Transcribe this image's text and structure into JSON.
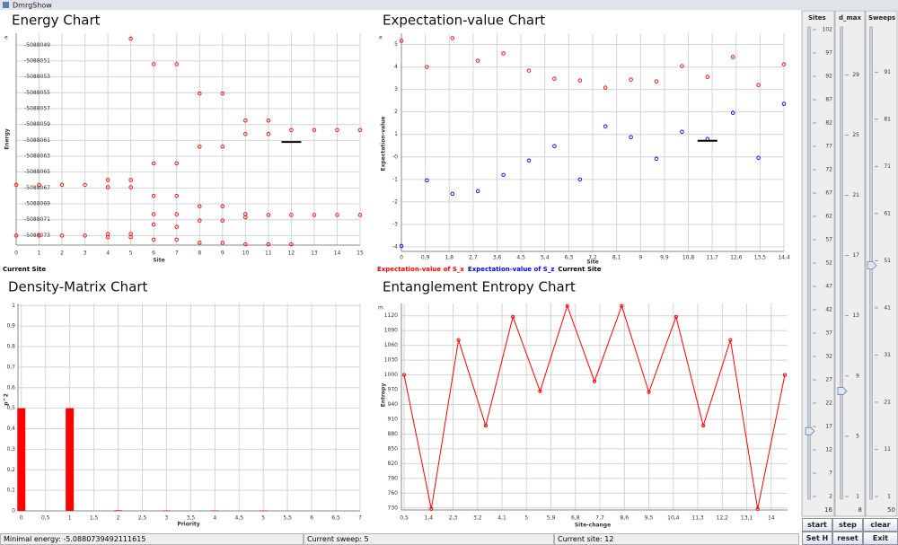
{
  "window": {
    "title": "DmrgShow"
  },
  "chart_data": [
    {
      "type": "scatter",
      "title": "Energy Chart",
      "corner_label": "e",
      "x_label": "Site",
      "y_label": "Energy",
      "xlim": [
        0,
        15
      ],
      "xticks": [
        0,
        1,
        2,
        3,
        4,
        5,
        6,
        7,
        8,
        9,
        10,
        11,
        12,
        13,
        14,
        15
      ],
      "ylim": [
        -5088074.2,
        -5088047.5
      ],
      "yticks": [
        -5088049,
        -5088051,
        -5088053,
        -5088055,
        -5088057,
        -5088059,
        -5088061,
        -5088063,
        -5088065,
        -5088067,
        -5088069,
        -5088071,
        -5088073
      ],
      "grid": true,
      "series": [
        {
          "color": "#ff0000",
          "marker": "circle",
          "x": [
            0,
            0,
            1,
            1,
            2,
            2,
            3,
            3,
            4,
            4,
            4,
            4,
            5,
            5,
            5,
            5,
            5,
            6,
            6,
            6,
            6,
            6,
            6,
            7,
            7,
            7,
            7,
            7,
            7,
            8,
            8,
            8,
            8,
            8,
            9,
            9,
            9,
            9,
            9,
            10,
            10,
            10,
            10,
            10,
            11,
            11,
            11,
            11,
            12,
            12,
            12,
            13,
            13,
            14,
            14,
            15,
            15
          ],
          "values": [
            -5088066.6,
            -5088073,
            -5088066.6,
            -5088073,
            -5088066.6,
            -5088073,
            -5088066.6,
            -5088073,
            -5088066,
            -5088066.9,
            -5088072.8,
            -5088073.2,
            -5088048.2,
            -5088066,
            -5088066.9,
            -5088072.8,
            -5088073.2,
            -5088051.4,
            -5088063.9,
            -5088068,
            -5088070.3,
            -5088071.6,
            -5088073.5,
            -5088051.4,
            -5088063.9,
            -5088068,
            -5088070.3,
            -5088071.9,
            -5088073.5,
            -5088055.1,
            -5088061.8,
            -5088069.3,
            -5088071.1,
            -5088073.9,
            -5088055.1,
            -5088061.8,
            -5088069.3,
            -5088071.1,
            -5088073.9,
            -5088058.5,
            -5088060.2,
            -5088070.3,
            -5088070.7,
            -5088074.1,
            -5088058.5,
            -5088060.2,
            -5088070.4,
            -5088074.1,
            -5088059.7,
            -5088070.4,
            -5088074.1,
            -5088059.7,
            -5088070.4,
            -5088059.7,
            -5088070.4,
            -5088059.7,
            -5088070.4
          ]
        },
        {
          "name": "Current Site",
          "color": "#000000",
          "marker": "dash",
          "x": [
            12
          ],
          "values": [
            -5088061.2
          ]
        }
      ]
    },
    {
      "type": "scatter",
      "title": "Expectation-value Chart",
      "corner_label": "e",
      "x_label": "Site",
      "y_label": "Expectation-value",
      "xlim": [
        0,
        14.4
      ],
      "xticks": [
        0,
        {
          "value": 0.9,
          "label": "0,9"
        },
        {
          "value": 1.8,
          "label": "1,8"
        },
        {
          "value": 2.7,
          "label": "2,7"
        },
        {
          "value": 3.6,
          "label": "3,6"
        },
        {
          "value": 4.5,
          "label": "4,5"
        },
        {
          "value": 5.4,
          "label": "5,4"
        },
        {
          "value": 6.3,
          "label": "6,3"
        },
        {
          "value": 7.2,
          "label": "7,2"
        },
        {
          "value": 8.1,
          "label": "8,1"
        },
        9,
        {
          "value": 9.9,
          "label": "9,9"
        },
        {
          "value": 10.8,
          "label": "10,8"
        },
        {
          "value": 11.7,
          "label": "11,7"
        },
        {
          "value": 12.6,
          "label": "12,6"
        },
        {
          "value": 13.5,
          "label": "13,5"
        },
        {
          "value": 14.4,
          "label": "14,4"
        }
      ],
      "ylim": [
        -4.2,
        5.5
      ],
      "yticks": [
        5,
        4,
        3,
        2,
        1,
        {
          "value": 0,
          "label": "-0"
        },
        -1,
        -2,
        -3,
        -4
      ],
      "grid": true,
      "series": [
        {
          "name": "Expectation-value of S_x",
          "color": "#ff0000",
          "marker": "circle",
          "x": [
            0,
            0.96,
            1.92,
            2.88,
            3.84,
            4.8,
            5.76,
            6.72,
            7.68,
            8.64,
            9.6,
            10.56,
            11.52,
            12.48,
            13.44,
            14.4
          ],
          "values": [
            5.16,
            4.0,
            5.28,
            4.28,
            4.6,
            3.84,
            3.48,
            3.4,
            3.08,
            3.44,
            3.36,
            4.04,
            3.56,
            4.44,
            3.2,
            4.12
          ]
        },
        {
          "name": "Expectation-value of S_z",
          "color": "#0000ff",
          "marker": "circle",
          "x": [
            0,
            0.96,
            1.92,
            2.88,
            3.84,
            4.8,
            5.76,
            6.72,
            7.68,
            8.64,
            9.6,
            10.56,
            11.52,
            12.48,
            13.44,
            14.4
          ],
          "values": [
            -3.96,
            -1.04,
            -1.64,
            -1.52,
            -0.8,
            -0.16,
            0.48,
            -1.0,
            1.36,
            0.88,
            -0.08,
            1.12,
            0.8,
            1.96,
            -0.04,
            2.36
          ]
        },
        {
          "name": "Current Site",
          "color": "#000000",
          "marker": "dash",
          "x": [
            11.52
          ],
          "values": [
            0.72
          ]
        }
      ]
    },
    {
      "type": "bar",
      "title": "Density-Matrix Chart",
      "x_label": "Priority",
      "y_label": "p^2",
      "color": "#ff0000",
      "x": [
        0,
        1,
        2,
        3,
        4,
        5
      ],
      "values": [
        0.5,
        0.5,
        0.003,
        0.002,
        0.002,
        0.002
      ],
      "xlim": [
        -0.07,
        7
      ],
      "xticks": [
        0,
        {
          "value": 0.5,
          "label": "0,5"
        },
        1,
        {
          "value": 1.5,
          "label": "1,5"
        },
        2,
        {
          "value": 2.5,
          "label": "2,5"
        },
        3,
        {
          "value": 3.5,
          "label": "3,5"
        },
        4,
        {
          "value": 4.5,
          "label": "4,5"
        },
        5,
        {
          "value": 5.5,
          "label": "5,5"
        },
        6,
        {
          "value": 6.5,
          "label": "6,5"
        },
        7
      ],
      "ylim": [
        0,
        1.01
      ],
      "yticks": [
        0,
        {
          "value": 0.1,
          "label": "0,1"
        },
        {
          "value": 0.2,
          "label": "0,2"
        },
        {
          "value": 0.3,
          "label": "0,3"
        },
        {
          "value": 0.4,
          "label": "0,4"
        },
        {
          "value": 0.5,
          "label": "0,5"
        },
        {
          "value": 0.6,
          "label": "0,6"
        },
        {
          "value": 0.7,
          "label": "0,7"
        },
        {
          "value": 0.8,
          "label": "0,8"
        },
        {
          "value": 0.9,
          "label": "0,9"
        },
        1
      ],
      "grid": true
    },
    {
      "type": "line",
      "title": "Entanglement Entropy Chart",
      "corner_label": "m",
      "x_label": "Site-change",
      "y_label": "Entropy",
      "color": "#ff0000",
      "x": [
        0.5,
        1.5,
        2.5,
        3.5,
        4.5,
        5.5,
        6.5,
        7.5,
        8.5,
        9.5,
        10.5,
        11.5,
        12.5,
        13.5,
        14.5
      ],
      "values": [
        1000,
        728,
        1071,
        897,
        1118,
        967,
        1140,
        987,
        1140,
        965,
        1118,
        897,
        1071,
        728,
        1000
      ],
      "xlim": [
        0.4,
        14.6
      ],
      "xticks": [
        {
          "value": 0.5,
          "label": "0,5"
        },
        {
          "value": 1.4,
          "label": "1,4"
        },
        {
          "value": 2.3,
          "label": "2,3"
        },
        {
          "value": 3.2,
          "label": "3,2"
        },
        {
          "value": 4.1,
          "label": "4,1"
        },
        5,
        {
          "value": 5.9,
          "label": "5,9"
        },
        {
          "value": 6.8,
          "label": "6,8"
        },
        {
          "value": 7.7,
          "label": "7,7"
        },
        {
          "value": 8.6,
          "label": "8,6"
        },
        {
          "value": 9.5,
          "label": "9,5"
        },
        {
          "value": 10.4,
          "label": "10,4"
        },
        {
          "value": 11.3,
          "label": "11,3"
        },
        {
          "value": 12.2,
          "label": "12,2"
        },
        {
          "value": 13.1,
          "label": "13,1"
        },
        14
      ],
      "ylim": [
        726,
        1145
      ],
      "yticks": [
        730,
        760,
        790,
        820,
        850,
        880,
        910,
        940,
        970,
        1000,
        1030,
        1060,
        1090,
        1120
      ],
      "grid": true
    }
  ],
  "controls": {
    "sliders": [
      {
        "label": "Sites",
        "range": [
          2,
          102
        ],
        "ticks": [
          102,
          97,
          92,
          87,
          82,
          77,
          72,
          67,
          62,
          57,
          52,
          47,
          42,
          37,
          32,
          27,
          22,
          17,
          12,
          7,
          2
        ],
        "value": 16
      },
      {
        "label": "d_max",
        "range": [
          1,
          32
        ],
        "ticks": [
          29,
          25,
          21,
          17,
          13,
          9,
          5,
          1
        ],
        "value": 8
      },
      {
        "label": "Sweeps",
        "range": [
          1,
          100
        ],
        "ticks": [
          91,
          81,
          71,
          61,
          51,
          41,
          31,
          21,
          11,
          1
        ],
        "value": 50
      }
    ],
    "buttons": [
      "start",
      "step",
      "clear",
      "Set H",
      "reset",
      "Exit"
    ]
  },
  "status": [
    "Minimal energy: -5.0880739492111615",
    "Current sweep: 5",
    "Current site: 12"
  ]
}
